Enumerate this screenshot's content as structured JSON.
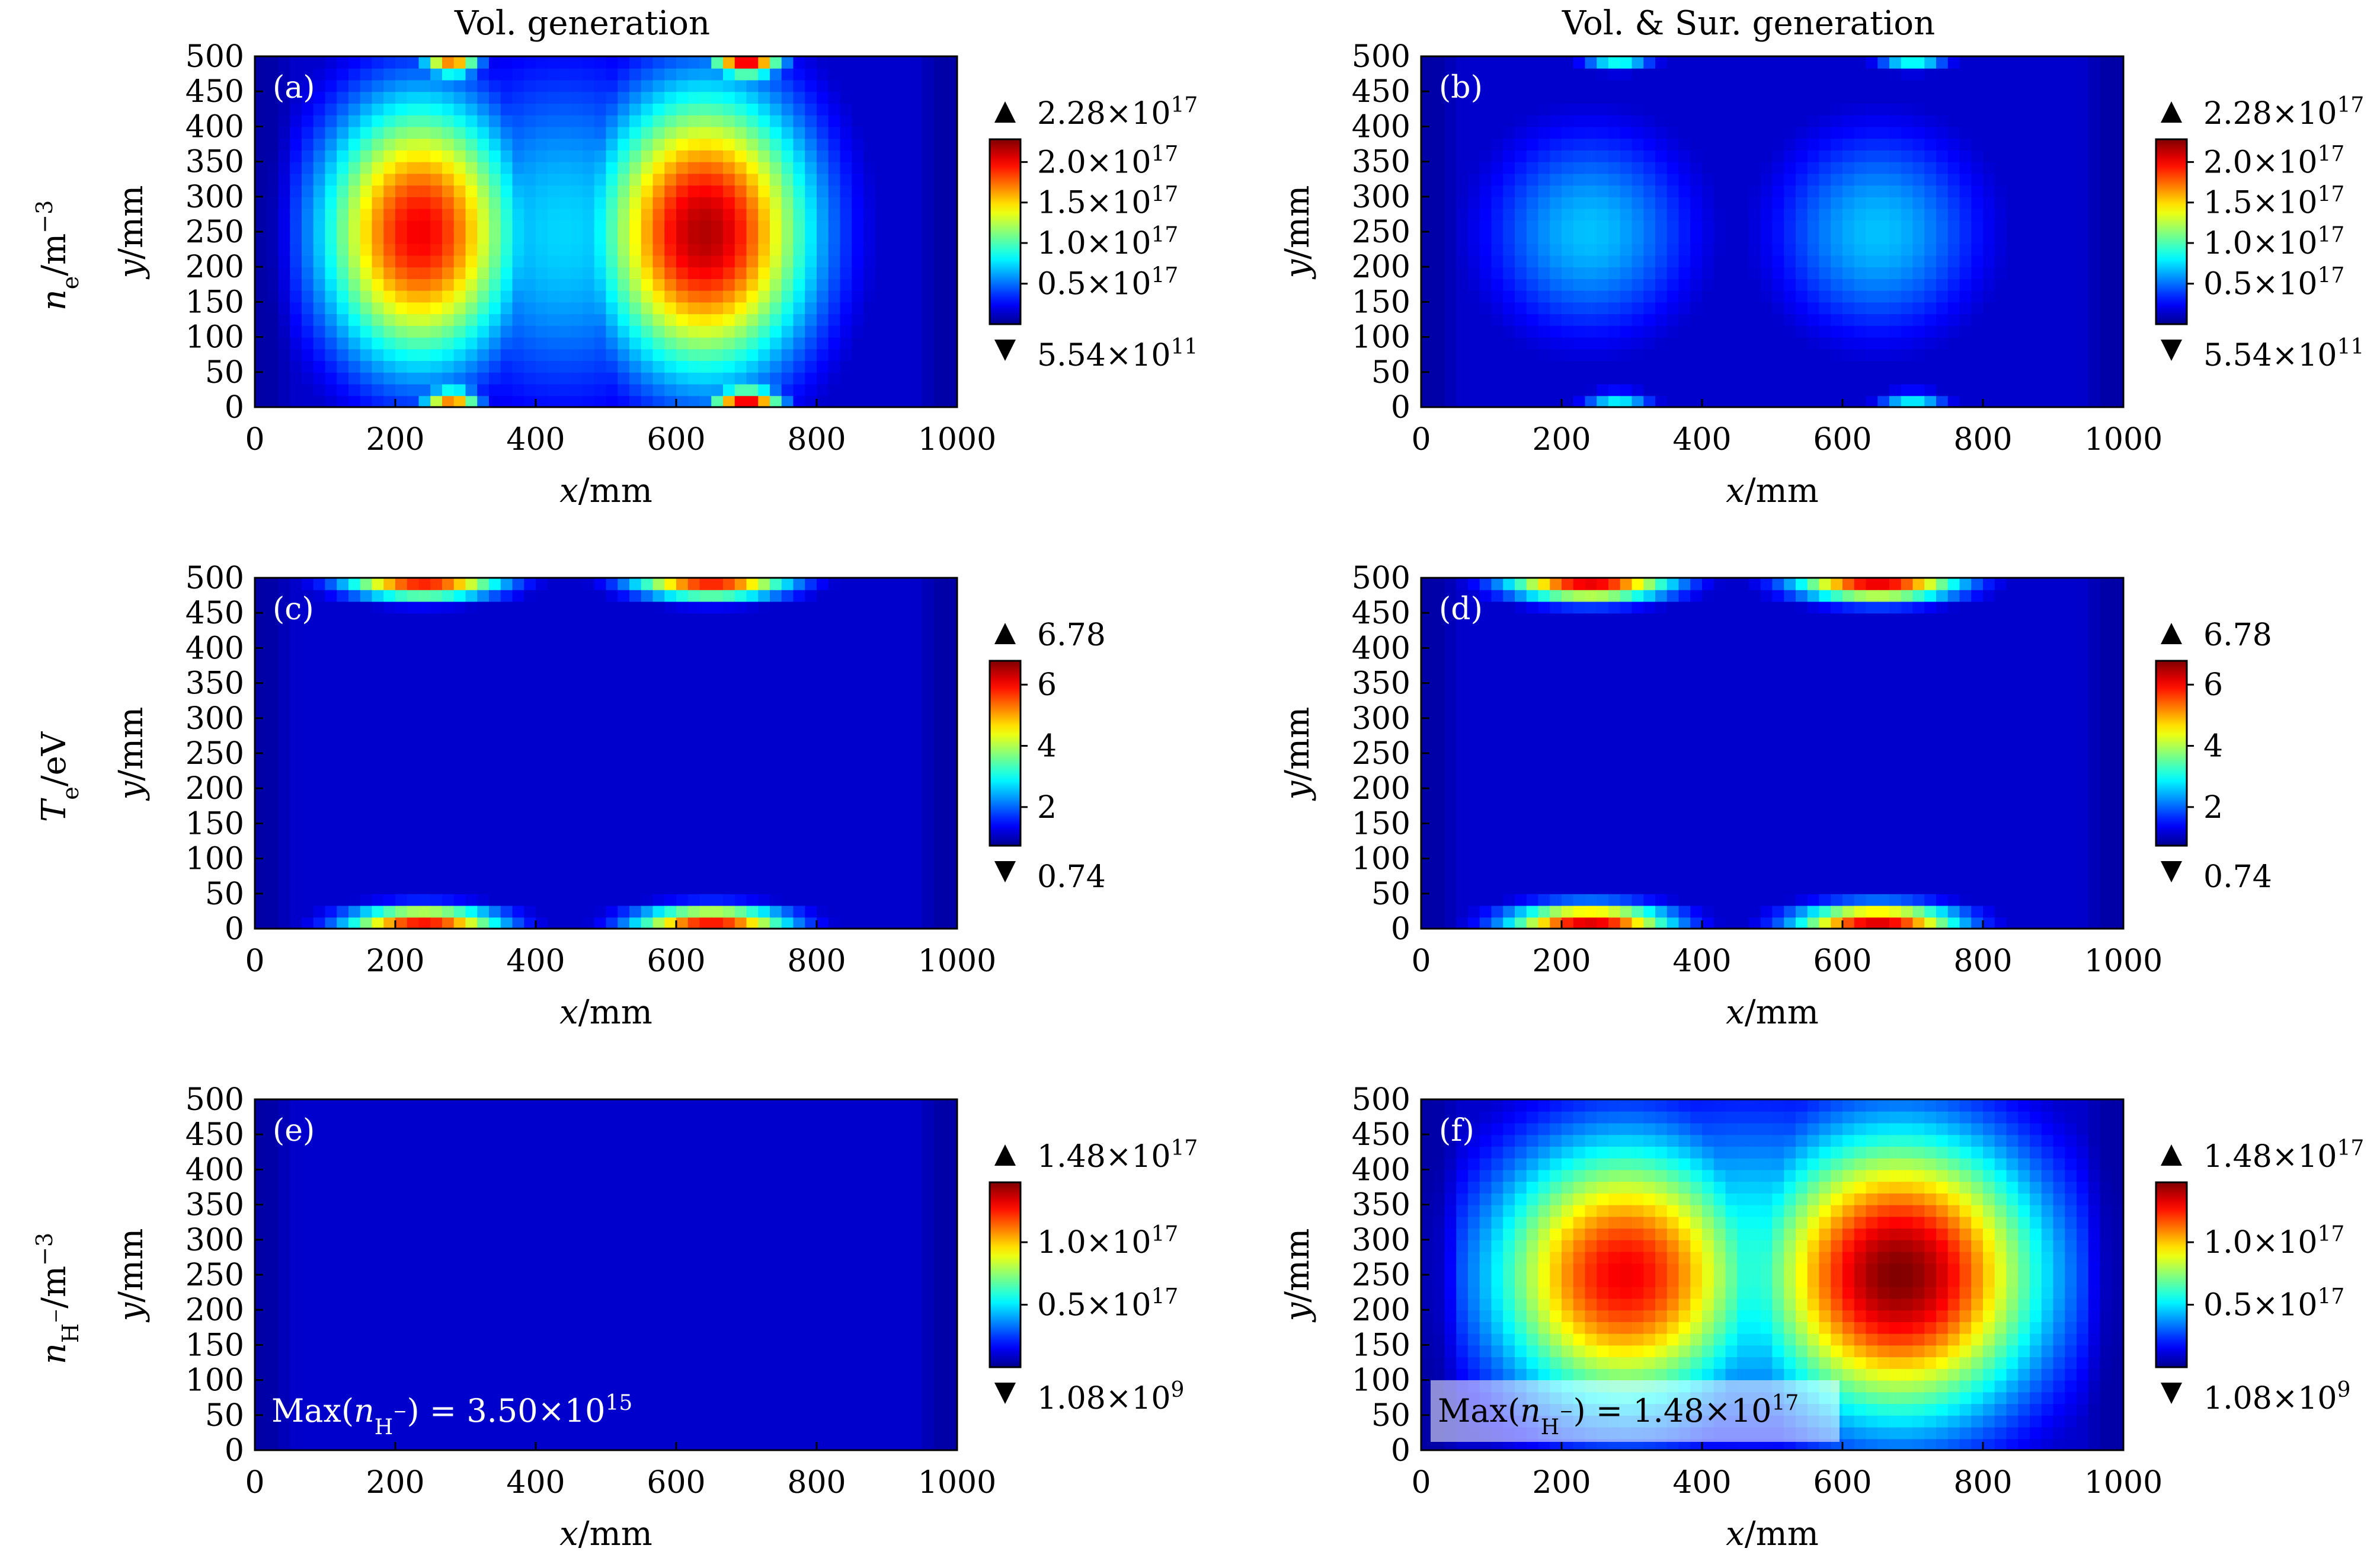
{
  "figure": {
    "columns": [
      {
        "key": "vol",
        "title": "Vol. generation"
      },
      {
        "key": "volsur",
        "title": "Vol. & Sur. generation"
      }
    ],
    "rows": [
      {
        "key": "ne",
        "row_label_base": "n",
        "row_label_sub": "e",
        "row_label_unit": "/m",
        "row_label_sup": "−3"
      },
      {
        "key": "te",
        "row_label_base": "T",
        "row_label_sub": "e",
        "row_label_unit": "/eV",
        "row_label_sup": ""
      },
      {
        "key": "nh",
        "row_label_base": "n",
        "row_label_sub": "H",
        "row_label_subsup": "−",
        "row_label_unit": "/m",
        "row_label_sup": "−3"
      }
    ]
  },
  "colors": {
    "jet_dark_blue": "#00008f",
    "jet_blue": "#0000ff",
    "jet_cyan": "#00ffff",
    "jet_yellow": "#ffff00",
    "jet_red": "#ff0000",
    "jet_dark_red": "#800000"
  },
  "chart_data": [
    {
      "type": "heatmap",
      "panel": "(a)",
      "column": "Vol. generation",
      "xlabel_var": "x",
      "xlabel_unit": "/mm",
      "ylabel_var": "y",
      "ylabel_unit": "/mm",
      "xlim": [
        0,
        1000
      ],
      "ylim": [
        0,
        500
      ],
      "xticks": [
        0,
        200,
        400,
        600,
        800,
        1000
      ],
      "yticks": [
        0,
        50,
        100,
        150,
        200,
        250,
        300,
        350,
        400,
        450,
        500
      ],
      "colorbar": {
        "max_mantissa": "2.28",
        "max_exp": "17",
        "min_mantissa": "5.54",
        "min_exp": "11",
        "ticks": [
          {
            "label": "2.0",
            "exp": "17",
            "frac": 0.877
          },
          {
            "label": "1.5",
            "exp": "17",
            "frac": 0.658
          },
          {
            "label": "1.0",
            "exp": "17",
            "frac": 0.439
          },
          {
            "label": "0.5",
            "exp": "17",
            "frac": 0.219
          }
        ]
      },
      "hotspots": [
        {
          "x": 235,
          "y": 250,
          "sx": 140,
          "sy": 190,
          "v": 0.88
        },
        {
          "x": 640,
          "y": 250,
          "sx": 150,
          "sy": 200,
          "v": 0.95
        },
        {
          "x": 280,
          "y": 490,
          "sx": 40,
          "sy": 18,
          "v": 0.75
        },
        {
          "x": 280,
          "y": 10,
          "sx": 40,
          "sy": 18,
          "v": 0.75
        },
        {
          "x": 700,
          "y": 490,
          "sx": 50,
          "sy": 18,
          "v": 0.9
        },
        {
          "x": 700,
          "y": 10,
          "sx": 50,
          "sy": 18,
          "v": 0.9
        },
        {
          "x": 440,
          "y": 250,
          "sx": 200,
          "sy": 250,
          "v": 0.32
        }
      ]
    },
    {
      "type": "heatmap",
      "panel": "(b)",
      "column": "Vol. & Sur. generation",
      "xlabel_var": "x",
      "xlabel_unit": "/mm",
      "ylabel_var": "y",
      "ylabel_unit": "/mm",
      "xlim": [
        0,
        1000
      ],
      "ylim": [
        0,
        500
      ],
      "xticks": [
        0,
        200,
        400,
        600,
        800,
        1000
      ],
      "yticks": [
        0,
        50,
        100,
        150,
        200,
        250,
        300,
        350,
        400,
        450,
        500
      ],
      "colorbar": {
        "max_mantissa": "2.28",
        "max_exp": "17",
        "min_mantissa": "5.54",
        "min_exp": "11",
        "ticks": [
          {
            "label": "2.0",
            "exp": "17",
            "frac": 0.877
          },
          {
            "label": "1.5",
            "exp": "17",
            "frac": 0.658
          },
          {
            "label": "1.0",
            "exp": "17",
            "frac": 0.439
          },
          {
            "label": "0.5",
            "exp": "17",
            "frac": 0.219
          }
        ]
      },
      "hotspots": [
        {
          "x": 240,
          "y": 250,
          "sx": 150,
          "sy": 150,
          "v": 0.3
        },
        {
          "x": 650,
          "y": 250,
          "sx": 150,
          "sy": 150,
          "v": 0.3
        },
        {
          "x": 280,
          "y": 490,
          "sx": 50,
          "sy": 12,
          "v": 0.38
        },
        {
          "x": 280,
          "y": 12,
          "sx": 50,
          "sy": 12,
          "v": 0.38
        },
        {
          "x": 700,
          "y": 490,
          "sx": 50,
          "sy": 12,
          "v": 0.38
        },
        {
          "x": 700,
          "y": 12,
          "sx": 50,
          "sy": 12,
          "v": 0.38
        }
      ]
    },
    {
      "type": "heatmap",
      "panel": "(c)",
      "column": "Vol. generation",
      "xlabel_var": "x",
      "xlabel_unit": "/mm",
      "ylabel_var": "y",
      "ylabel_unit": "/mm",
      "xlim": [
        0,
        1000
      ],
      "ylim": [
        0,
        500
      ],
      "xticks": [
        0,
        200,
        400,
        600,
        800,
        1000
      ],
      "yticks": [
        0,
        50,
        100,
        150,
        200,
        250,
        300,
        350,
        400,
        450,
        500
      ],
      "colorbar": {
        "max_mantissa": "6.78",
        "max_exp": "",
        "min_mantissa": "0.74",
        "min_exp": "",
        "ticks": [
          {
            "label": "6",
            "exp": "",
            "frac": 0.871
          },
          {
            "label": "4",
            "exp": "",
            "frac": 0.54
          },
          {
            "label": "2",
            "exp": "",
            "frac": 0.209
          }
        ]
      },
      "hotspots": [
        {
          "x": 240,
          "y": 495,
          "sx": 110,
          "sy": 25,
          "v": 0.85
        },
        {
          "x": 240,
          "y": 8,
          "sx": 110,
          "sy": 25,
          "v": 0.85
        },
        {
          "x": 650,
          "y": 495,
          "sx": 110,
          "sy": 25,
          "v": 0.85
        },
        {
          "x": 650,
          "y": 8,
          "sx": 110,
          "sy": 25,
          "v": 0.85
        }
      ]
    },
    {
      "type": "heatmap",
      "panel": "(d)",
      "column": "Vol. & Sur. generation",
      "xlabel_var": "x",
      "xlabel_unit": "/mm",
      "ylabel_var": "y",
      "ylabel_unit": "/mm",
      "xlim": [
        0,
        1000
      ],
      "ylim": [
        0,
        500
      ],
      "xticks": [
        0,
        200,
        400,
        600,
        800,
        1000
      ],
      "yticks": [
        0,
        50,
        100,
        150,
        200,
        250,
        300,
        350,
        400,
        450,
        500
      ],
      "colorbar": {
        "max_mantissa": "6.78",
        "max_exp": "",
        "min_mantissa": "0.74",
        "min_exp": "",
        "ticks": [
          {
            "label": "6",
            "exp": "",
            "frac": 0.871
          },
          {
            "label": "4",
            "exp": "",
            "frac": 0.54
          },
          {
            "label": "2",
            "exp": "",
            "frac": 0.209
          }
        ]
      },
      "hotspots": [
        {
          "x": 240,
          "y": 495,
          "sx": 115,
          "sy": 28,
          "v": 0.9
        },
        {
          "x": 240,
          "y": 8,
          "sx": 115,
          "sy": 28,
          "v": 0.9
        },
        {
          "x": 650,
          "y": 495,
          "sx": 115,
          "sy": 28,
          "v": 0.9
        },
        {
          "x": 650,
          "y": 8,
          "sx": 115,
          "sy": 28,
          "v": 0.9
        }
      ]
    },
    {
      "type": "heatmap",
      "panel": "(e)",
      "column": "Vol. generation",
      "xlabel_var": "x",
      "xlabel_unit": "/mm",
      "ylabel_var": "y",
      "ylabel_unit": "/mm",
      "xlim": [
        0,
        1000
      ],
      "ylim": [
        0,
        500
      ],
      "xticks": [
        0,
        200,
        400,
        600,
        800,
        1000
      ],
      "yticks": [
        0,
        50,
        100,
        150,
        200,
        250,
        300,
        350,
        400,
        450,
        500
      ],
      "colorbar": {
        "max_mantissa": "1.48",
        "max_exp": "17",
        "min_mantissa": "1.08",
        "min_exp": "9",
        "ticks": [
          {
            "label": "1.0",
            "exp": "17",
            "frac": 0.676
          },
          {
            "label": "0.5",
            "exp": "17",
            "frac": 0.338
          }
        ]
      },
      "max_note": {
        "prefix": "Max(",
        "var": "n",
        "sub": "H",
        "subsup": "−",
        "value": ") = 3.50×10",
        "exp": "15"
      },
      "hotspots": [
        {
          "x": 500,
          "y": 250,
          "sx": 300,
          "sy": 200,
          "v": 0.02
        }
      ]
    },
    {
      "type": "heatmap",
      "panel": "(f)",
      "column": "Vol. & Sur. generation",
      "xlabel_var": "x",
      "xlabel_unit": "/mm",
      "ylabel_var": "y",
      "ylabel_unit": "/mm",
      "xlim": [
        0,
        1000
      ],
      "ylim": [
        0,
        500
      ],
      "xticks": [
        0,
        200,
        400,
        600,
        800,
        1000
      ],
      "yticks": [
        0,
        50,
        100,
        150,
        200,
        250,
        300,
        350,
        400,
        450,
        500
      ],
      "colorbar": {
        "max_mantissa": "1.48",
        "max_exp": "17",
        "min_mantissa": "1.08",
        "min_exp": "9",
        "ticks": [
          {
            "label": "1.0",
            "exp": "17",
            "frac": 0.676
          },
          {
            "label": "0.5",
            "exp": "17",
            "frac": 0.338
          }
        ]
      },
      "max_note": {
        "prefix": "Max(",
        "var": "n",
        "sub": "H",
        "subsup": "−",
        "value": ") = 1.48×10",
        "exp": "17"
      },
      "hotspots": [
        {
          "x": 290,
          "y": 250,
          "sx": 190,
          "sy": 190,
          "v": 0.88
        },
        {
          "x": 680,
          "y": 250,
          "sx": 200,
          "sy": 200,
          "v": 1.0
        },
        {
          "x": 470,
          "y": 260,
          "sx": 330,
          "sy": 230,
          "v": 0.4
        }
      ]
    }
  ]
}
